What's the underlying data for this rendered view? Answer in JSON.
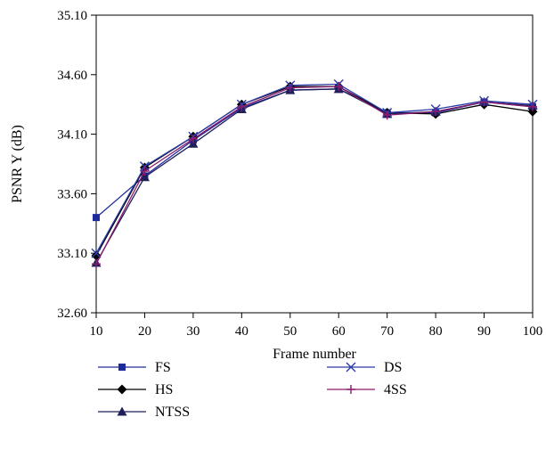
{
  "chart_data": {
    "type": "line",
    "title": "",
    "xlabel": "Frame number",
    "ylabel": "PSNR Y (dB)",
    "x": [
      10,
      20,
      30,
      40,
      50,
      60,
      70,
      80,
      90,
      100
    ],
    "xlim": [
      10,
      100
    ],
    "ylim": [
      32.6,
      35.1
    ],
    "x_ticks": [
      "10",
      "20",
      "30",
      "40",
      "50",
      "60",
      "70",
      "80",
      "90",
      "100"
    ],
    "y_ticks": [
      "35.10",
      "34.60",
      "34.10",
      "33.60",
      "33.10",
      "32.60"
    ],
    "y_tick_values": [
      35.1,
      34.6,
      34.1,
      33.6,
      33.1,
      32.6
    ],
    "grid": false,
    "legend_position": "bottom",
    "series": [
      {
        "name": "FS",
        "marker": "square",
        "color": "#1f2a9a",
        "values": [
          33.4,
          33.75,
          34.05,
          34.32,
          34.47,
          34.48,
          34.28,
          34.28,
          34.37,
          34.33
        ]
      },
      {
        "name": "HS",
        "marker": "diamond",
        "color": "#000000",
        "values": [
          33.08,
          33.82,
          34.08,
          34.35,
          34.5,
          34.5,
          34.28,
          34.27,
          34.35,
          34.29
        ]
      },
      {
        "name": "NTSS",
        "marker": "triangle",
        "color": "#1f1f5a",
        "values": [
          33.02,
          33.74,
          34.02,
          34.31,
          34.47,
          34.48,
          34.27,
          34.29,
          34.37,
          34.34
        ]
      },
      {
        "name": "DS",
        "marker": "x",
        "color": "#2b3ca8",
        "values": [
          33.1,
          33.83,
          34.08,
          34.35,
          34.51,
          34.52,
          34.28,
          34.31,
          34.38,
          34.35
        ]
      },
      {
        "name": "4SS",
        "marker": "plus",
        "color": "#8a1a6c",
        "values": [
          33.01,
          33.79,
          34.06,
          34.33,
          34.49,
          34.5,
          34.26,
          34.29,
          34.37,
          34.33
        ]
      }
    ]
  }
}
